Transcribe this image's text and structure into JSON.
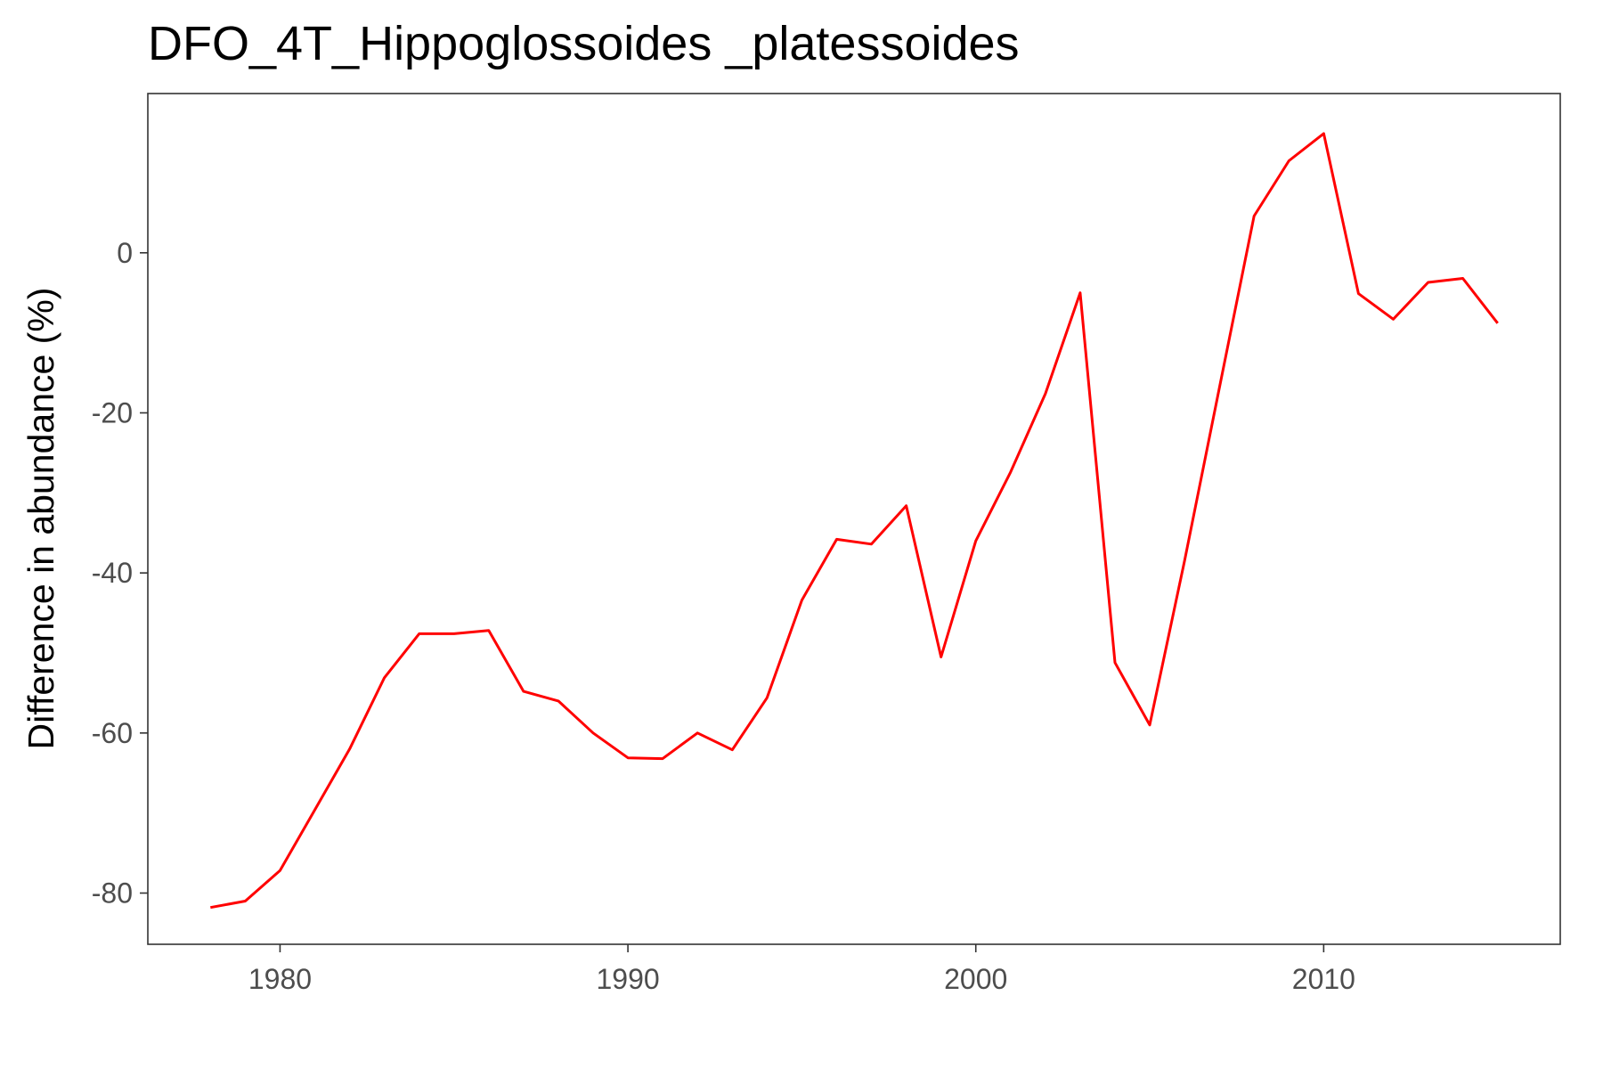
{
  "chart_data": {
    "type": "line",
    "title": "DFO_4T_Hippoglossoides _platessoides",
    "xlabel": "",
    "ylabel": "Difference in abundance (%)",
    "xlim": [
      1976.2,
      2016.8
    ],
    "ylim": [
      -86.4,
      19.9
    ],
    "x_ticks": [
      1980,
      1990,
      2000,
      2010
    ],
    "y_ticks": [
      -80,
      -60,
      -40,
      -20,
      0
    ],
    "x_tick_labels": [
      "1980",
      "1990",
      "2000",
      "2010"
    ],
    "y_tick_labels": [
      "-80",
      "-60",
      "-40",
      "-20",
      "0"
    ],
    "grid": false,
    "series": [
      {
        "color": "#ff0000",
        "x": [
          1978,
          1979,
          1980,
          1981,
          1982,
          1983,
          1984,
          1985,
          1986,
          1987,
          1988,
          1989,
          1990,
          1991,
          1992,
          1993,
          1994,
          1995,
          1996,
          1997,
          1998,
          1999,
          2000,
          2001,
          2002,
          2003,
          2004,
          2005,
          2006,
          2007,
          2008,
          2009,
          2010,
          2011,
          2012,
          2013,
          2014,
          2015
        ],
        "y": [
          -81.8,
          -81.0,
          -77.2,
          -69.6,
          -62.0,
          -53.1,
          -47.6,
          -47.6,
          -47.2,
          -54.8,
          -56.0,
          -60.0,
          -63.1,
          -63.2,
          -60.0,
          -62.1,
          -55.6,
          -43.4,
          -35.8,
          -36.4,
          -31.6,
          -50.5,
          -36.0,
          -27.4,
          -17.6,
          -5.0,
          -51.2,
          -59.0,
          -38.5,
          -16.9,
          4.6,
          11.5,
          14.9,
          -5.1,
          -8.3,
          -3.7,
          -3.2,
          -8.8
        ]
      }
    ]
  }
}
